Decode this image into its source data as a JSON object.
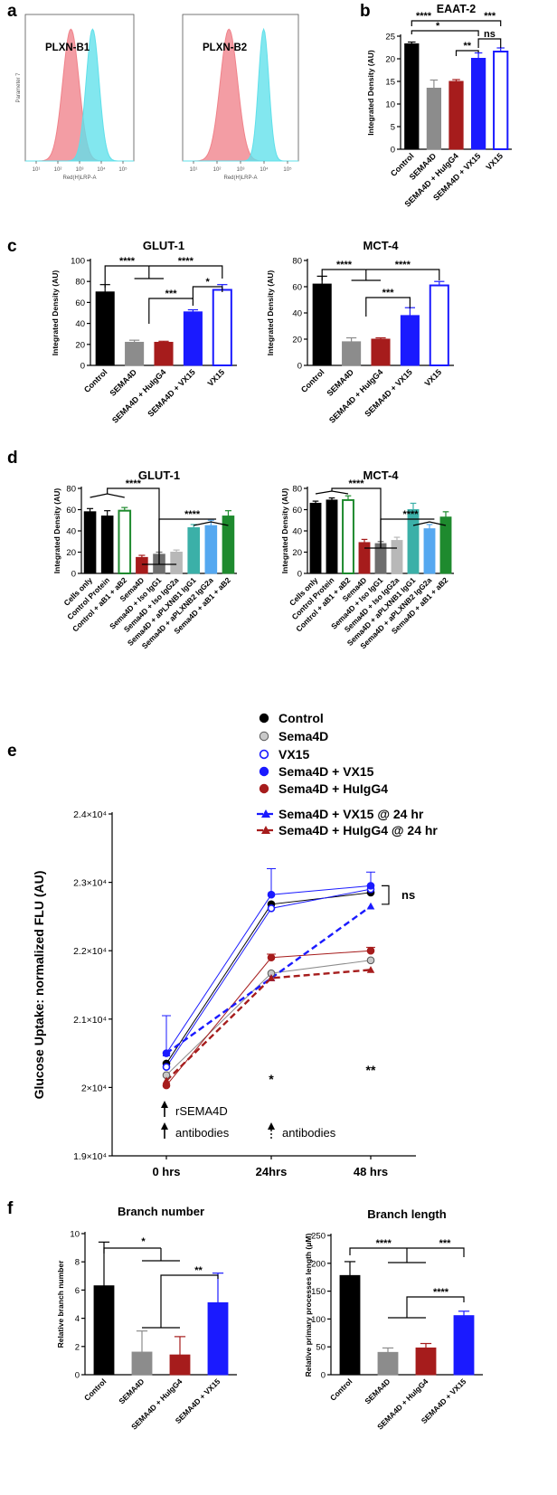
{
  "panel_letters": [
    "a",
    "b",
    "c",
    "d",
    "e",
    "f"
  ],
  "colors": {
    "black": "#000000",
    "grey": "#8c8c8c",
    "darkred": "#a61c1c",
    "blue": "#1a1aff",
    "green": "#1e8a2e",
    "teal": "#3bb0a8",
    "lightblue": "#55a8f0",
    "lightgrey": "#b8b8b8",
    "midgrey": "#6e6e6e",
    "flow_red": "#f0828a",
    "flow_cyan": "#5fe0ea"
  },
  "chart_data": [
    {
      "id": "a1",
      "type": "area",
      "title": "PLXN-B1",
      "xlabel": "Red(H)LRP-A",
      "ylabel": "Parameter 7",
      "series": [
        {
          "name": "",
          "color": "flow_red",
          "mu": 0.42,
          "sigma": 0.075
        },
        {
          "name": "",
          "color": "flow_cyan",
          "mu": 0.62,
          "sigma": 0.06
        }
      ],
      "x_ticks": [
        "10¹",
        "10²",
        "10³",
        "10⁴",
        "10⁵"
      ]
    },
    {
      "id": "a2",
      "type": "area",
      "title": "PLXN-B2",
      "xlabel": "Red(H)LRP-A",
      "ylabel": "",
      "series": [
        {
          "name": "",
          "color": "flow_red",
          "mu": 0.4,
          "sigma": 0.075
        },
        {
          "name": "",
          "color": "flow_cyan",
          "mu": 0.7,
          "sigma": 0.045
        }
      ],
      "x_ticks": [
        "10¹",
        "10²",
        "10³",
        "10⁴",
        "10⁵"
      ]
    },
    {
      "id": "b",
      "type": "bar",
      "title": "EAAT-2",
      "ylabel": "Integrated Density (AU)",
      "ylim": [
        0,
        25
      ],
      "yticks": [
        0,
        5,
        10,
        15,
        20,
        25
      ],
      "categories": [
        "Control",
        "SEMA4D",
        "SEMA4D + HuIgG4",
        "SEMA4D + VX15",
        "VX15"
      ],
      "values": [
        23.3,
        13.5,
        15.0,
        20.1,
        21.6
      ],
      "errors": [
        0.4,
        1.8,
        0.4,
        1.2,
        0.8
      ],
      "bar_colors": [
        "black",
        "grey",
        "darkred",
        "blue",
        "blue"
      ],
      "hollow": [
        false,
        false,
        false,
        false,
        true
      ],
      "significance": [
        "****",
        "*",
        "***",
        "**",
        "ns"
      ]
    },
    {
      "id": "c1",
      "type": "bar",
      "title": "GLUT-1",
      "ylabel": "Integrated Density (AU)",
      "ylim": [
        0,
        100
      ],
      "yticks": [
        0,
        20,
        40,
        60,
        80,
        100
      ],
      "categories": [
        "Control",
        "SEMA4D",
        "SEMA4D + HuIgG4",
        "SEMA4D + VX15",
        "VX15"
      ],
      "values": [
        70,
        22,
        22,
        51,
        72
      ],
      "errors": [
        7,
        2,
        1,
        2,
        5
      ],
      "bar_colors": [
        "black",
        "grey",
        "darkred",
        "blue",
        "blue"
      ],
      "hollow": [
        false,
        false,
        false,
        false,
        true
      ],
      "significance": [
        "****",
        "****",
        "*",
        "***"
      ]
    },
    {
      "id": "c2",
      "type": "bar",
      "title": "MCT-4",
      "ylabel": "Integrated Density (AU)",
      "ylim": [
        0,
        80
      ],
      "yticks": [
        0,
        20,
        40,
        60,
        80
      ],
      "categories": [
        "Control",
        "SEMA4D",
        "SEMA4D + HuIgG4",
        "SEMA4D + VX15",
        "VX15"
      ],
      "values": [
        62,
        18,
        20,
        38,
        61
      ],
      "errors": [
        6,
        3,
        1,
        6,
        3
      ],
      "bar_colors": [
        "black",
        "grey",
        "darkred",
        "blue",
        "blue"
      ],
      "hollow": [
        false,
        false,
        false,
        false,
        true
      ],
      "significance": [
        "****",
        "****",
        "***"
      ]
    },
    {
      "id": "d1",
      "type": "bar",
      "title": "GLUT-1",
      "ylabel": "Integrated Density (AU)",
      "ylim": [
        0,
        80
      ],
      "yticks": [
        0,
        20,
        40,
        60,
        80
      ],
      "categories": [
        "Cells only",
        "Control Protein",
        "Control + aB1 + aB2",
        "Sema4D",
        "Sema4D + Iso IgG1",
        "Sema4D + Iso IgG2a",
        "Sema4D + aPLXNB1 IgG1",
        "Sema4D + aPLXNB2 IgG2a",
        "Sema4D + aB1 + aB2"
      ],
      "values": [
        58,
        54,
        59,
        15,
        18,
        20,
        43,
        45,
        54
      ],
      "errors": [
        3,
        5,
        3,
        2,
        2,
        2,
        3,
        5,
        5
      ],
      "bar_colors": [
        "black",
        "black",
        "green",
        "darkred",
        "midgrey",
        "lightgrey",
        "teal",
        "lightblue",
        "green"
      ],
      "hollow": [
        false,
        false,
        true,
        false,
        false,
        false,
        false,
        false,
        false
      ],
      "significance": [
        "****",
        "****"
      ]
    },
    {
      "id": "d2",
      "type": "bar",
      "title": "MCT-4",
      "ylabel": "Integrated Density (AU)",
      "ylim": [
        0,
        80
      ],
      "yticks": [
        0,
        20,
        40,
        60,
        80
      ],
      "categories": [
        "Cells only",
        "Control Protein",
        "Control + aB1 + aB2",
        "Sema4D",
        "Sema4D + Iso IgG1",
        "Sema4D + Iso IgG2a",
        "Sema4D + aPLXNB1 IgG1",
        "Sema4D + aPLXNB2 IgG2a",
        "Sema4D + aB1 + aB2"
      ],
      "values": [
        66,
        69,
        69,
        29,
        28,
        31,
        60,
        42,
        53
      ],
      "errors": [
        2,
        2,
        4,
        3,
        2,
        3,
        6,
        4,
        5
      ],
      "bar_colors": [
        "black",
        "black",
        "green",
        "darkred",
        "midgrey",
        "lightgrey",
        "teal",
        "lightblue",
        "green"
      ],
      "hollow": [
        false,
        false,
        true,
        false,
        false,
        false,
        false,
        false,
        false
      ],
      "significance": [
        "****",
        "****"
      ]
    },
    {
      "id": "e",
      "type": "line",
      "ylabel": "Glucose  Uptake: normalized FLU (AU)",
      "x": [
        "0 hrs",
        "24hrs",
        "48 hrs"
      ],
      "ylim": [
        19000,
        24000
      ],
      "yticks": [
        "1.9×10⁴",
        "2×10⁴",
        "2.1×10⁴",
        "2.2×10⁴",
        "2.3×10⁴",
        "2.4×10⁴"
      ],
      "series": [
        {
          "name": "Control",
          "color": "black",
          "marker": "filled-circle",
          "dashed": false,
          "values": [
            20350,
            22680,
            22850
          ],
          "errors": [
            0,
            0,
            0
          ]
        },
        {
          "name": "Sema4D",
          "color": "grey",
          "marker": "grey-circle",
          "dashed": false,
          "values": [
            20180,
            21670,
            21860
          ],
          "errors": [
            0,
            0,
            0
          ]
        },
        {
          "name": "VX15",
          "color": "blue",
          "marker": "open-circle",
          "dashed": false,
          "values": [
            20300,
            22620,
            22900
          ],
          "errors": [
            0,
            0,
            0
          ]
        },
        {
          "name": "Sema4D + VX15",
          "color": "blue",
          "marker": "filled-circle",
          "dashed": false,
          "values": [
            20500,
            22820,
            22950
          ],
          "errors": [
            550,
            380,
            200
          ]
        },
        {
          "name": "Sema4D + HuIgG4",
          "color": "darkred",
          "marker": "filled-circle",
          "dashed": false,
          "values": [
            20030,
            21900,
            22000
          ],
          "errors": [
            0,
            50,
            50
          ]
        },
        {
          "name": "Sema4D + VX15 @ 24 hr",
          "color": "blue",
          "marker": "triangle",
          "dashed": true,
          "values": [
            20500,
            21600,
            22650
          ],
          "errors": [
            0,
            0,
            0
          ]
        },
        {
          "name": "Sema4D + HuIgG4 @ 24 hr",
          "color": "darkred",
          "marker": "triangle",
          "dashed": true,
          "values": [
            20100,
            21600,
            21720
          ],
          "errors": [
            0,
            0,
            0
          ]
        }
      ],
      "annotations": [
        "rSEMA4D",
        "antibodies",
        "antibodies",
        "*",
        "**",
        "ns"
      ]
    },
    {
      "id": "f1",
      "type": "bar",
      "title": "Branch number",
      "ylabel": "Relative branch number",
      "ylim": [
        0,
        10
      ],
      "yticks": [
        0,
        2,
        4,
        6,
        8,
        10
      ],
      "categories": [
        "Control",
        "SEMA4D",
        "SEMA4D + HuIgG4",
        "SEMA4D + VX15"
      ],
      "values": [
        6.3,
        1.6,
        1.4,
        5.1
      ],
      "errors": [
        3.1,
        1.5,
        1.3,
        2.1
      ],
      "bar_colors": [
        "black",
        "grey",
        "darkred",
        "blue"
      ],
      "hollow": [
        false,
        false,
        false,
        false
      ],
      "significance": [
        "*",
        "**"
      ]
    },
    {
      "id": "f2",
      "type": "bar",
      "title": "Branch length",
      "ylabel": "Relative primary processes length (μM)",
      "ylim": [
        0,
        250
      ],
      "yticks": [
        0,
        50,
        100,
        150,
        200,
        250
      ],
      "categories": [
        "Control",
        "SEMA4D",
        "SEMA4D + HuIgG4",
        "SEMA4D + VX15"
      ],
      "values": [
        178,
        40,
        48,
        106
      ],
      "errors": [
        25,
        8,
        8,
        8
      ],
      "bar_colors": [
        "black",
        "grey",
        "darkred",
        "blue"
      ],
      "hollow": [
        false,
        false,
        false,
        false
      ],
      "significance": [
        "****",
        "***",
        "****"
      ]
    }
  ]
}
